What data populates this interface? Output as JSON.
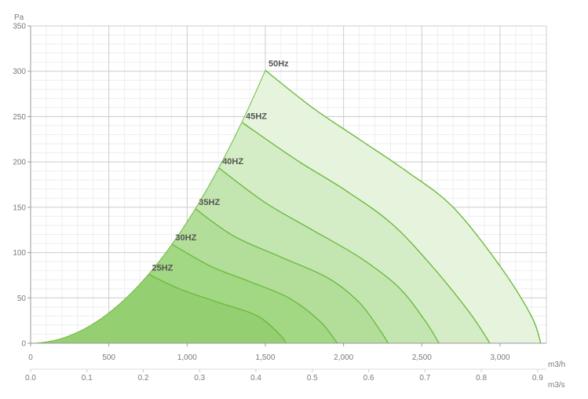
{
  "chart_data": {
    "type": "area",
    "ylabel": "Pa",
    "x_unit_primary": "m3/h",
    "x_unit_secondary": "m3/s",
    "ylim": [
      0,
      350
    ],
    "yticks": [
      0,
      50,
      100,
      150,
      200,
      250,
      300,
      350
    ],
    "xlim_m3h": [
      0,
      3300
    ],
    "xticks_m3h": [
      {
        "value": 0,
        "label": "0"
      },
      {
        "value": 500,
        "label": "500"
      },
      {
        "value": 1000,
        "label": "1,000"
      },
      {
        "value": 1500,
        "label": "1,500"
      },
      {
        "value": 2000,
        "label": "2,000"
      },
      {
        "value": 2500,
        "label": "2,500"
      },
      {
        "value": 3000,
        "label": "3,000"
      }
    ],
    "xticks_m3s": [
      {
        "value": 0.0,
        "label": "0.0"
      },
      {
        "value": 0.1,
        "label": "0.1"
      },
      {
        "value": 0.2,
        "label": "0.2"
      },
      {
        "value": 0.3,
        "label": "0.3"
      },
      {
        "value": 0.4,
        "label": "0.4"
      },
      {
        "value": 0.5,
        "label": "0.5"
      },
      {
        "value": 0.6,
        "label": "0.6"
      },
      {
        "value": 0.7,
        "label": "0.7"
      },
      {
        "value": 0.8,
        "label": "0.8"
      },
      {
        "value": 0.9,
        "label": "0.9"
      }
    ],
    "grid": true,
    "series": [
      {
        "name": "50Hz",
        "x": [
          1500,
          1800,
          2100,
          2400,
          2700,
          3000,
          3200,
          3260
        ],
        "y": [
          301,
          260,
          225,
          190,
          150,
          85,
          30,
          0
        ],
        "fill": "#e6f4dd"
      },
      {
        "name": "45HZ",
        "x": [
          1355,
          1700,
          2000,
          2300,
          2550,
          2800,
          2935
        ],
        "y": [
          243,
          202,
          170,
          133,
          88,
          35,
          0
        ],
        "fill": "#d4edc6"
      },
      {
        "name": "40HZ",
        "x": [
          1205,
          1500,
          1800,
          2100,
          2350,
          2520,
          2610
        ],
        "y": [
          193,
          155,
          125,
          95,
          62,
          25,
          0
        ],
        "fill": "#c3e6b0"
      },
      {
        "name": "35HZ",
        "x": [
          1055,
          1300,
          1600,
          1900,
          2100,
          2230,
          2285
        ],
        "y": [
          148,
          118,
          95,
          72,
          45,
          15,
          0
        ],
        "fill": "#b2de9a"
      },
      {
        "name": "30HZ",
        "x": [
          905,
          1150,
          1400,
          1650,
          1850,
          1960
        ],
        "y": [
          109,
          85,
          68,
          50,
          24,
          0
        ],
        "fill": "#a2d784"
      },
      {
        "name": "25HZ",
        "x": [
          755,
          950,
          1200,
          1450,
          1600,
          1630
        ],
        "y": [
          76,
          60,
          45,
          30,
          8,
          0
        ],
        "fill": "#94d071"
      }
    ],
    "colors": {
      "curve": "#6dbb3f",
      "grid_major": "#cccccc",
      "grid_minor": "#eeeeee",
      "axis": "#999999",
      "label": "#555555"
    }
  }
}
